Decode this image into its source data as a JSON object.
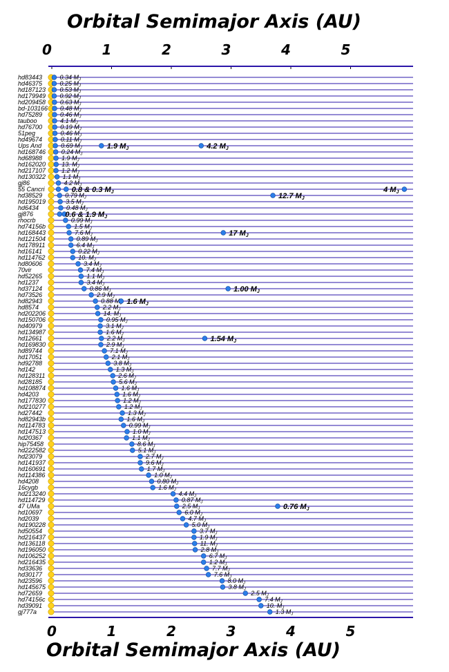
{
  "chart_data": {
    "type": "scatter",
    "top_title": "Orbital Semimajor Axis  (AU)",
    "bottom_title": "Orbital Semimajor Axis  (AU)",
    "x_ticks": [
      "0",
      "1",
      "2",
      "3",
      "4",
      "5"
    ],
    "xlim": [
      0,
      6
    ],
    "star_color": "#ffd21f",
    "planet_color": "#2b7ee8",
    "grid_color": "#2a14a8",
    "systems": [
      {
        "star": "hd83443",
        "planets": [
          {
            "a": 0.04,
            "m": "0.34 MJ",
            "big": false
          }
        ]
      },
      {
        "star": "hd46375",
        "planets": [
          {
            "a": 0.04,
            "m": "0.25 MJ",
            "big": false
          }
        ]
      },
      {
        "star": "hd187123",
        "planets": [
          {
            "a": 0.04,
            "m": "0.53 MJ",
            "big": false
          }
        ]
      },
      {
        "star": "hd179949",
        "planets": [
          {
            "a": 0.04,
            "m": "0.92 MJ",
            "big": false
          }
        ]
      },
      {
        "star": "hd209458",
        "planets": [
          {
            "a": 0.045,
            "m": "0.63 MJ",
            "big": false
          }
        ]
      },
      {
        "star": "bd-103166",
        "planets": [
          {
            "a": 0.046,
            "m": "0.48 MJ",
            "big": false
          }
        ]
      },
      {
        "star": "hd75289",
        "planets": [
          {
            "a": 0.046,
            "m": "0.46 MJ",
            "big": false
          }
        ]
      },
      {
        "star": "tauboo",
        "planets": [
          {
            "a": 0.047,
            "m": "4.1 MJ",
            "big": false
          }
        ]
      },
      {
        "star": "hd76700",
        "planets": [
          {
            "a": 0.049,
            "m": "0.19 MJ",
            "big": false
          }
        ]
      },
      {
        "star": "51peg",
        "planets": [
          {
            "a": 0.052,
            "m": "0.46 MJ",
            "big": false
          }
        ]
      },
      {
        "star": "hd49674",
        "planets": [
          {
            "a": 0.057,
            "m": "0.11 MJ",
            "big": false
          }
        ]
      },
      {
        "star": "Ups And",
        "planets": [
          {
            "a": 0.059,
            "m": "0.69 MJ",
            "big": false
          },
          {
            "a": 0.83,
            "m": "1.9 MJ",
            "big": true
          },
          {
            "a": 2.5,
            "m": "4.2 MJ",
            "big": true
          }
        ]
      },
      {
        "star": "hd168746",
        "planets": [
          {
            "a": 0.066,
            "m": "0.24 MJ",
            "big": false
          }
        ]
      },
      {
        "star": "hd68988",
        "planets": [
          {
            "a": 0.07,
            "m": "1.9 MJ",
            "big": false
          }
        ]
      },
      {
        "star": "hd162020",
        "planets": [
          {
            "a": 0.072,
            "m": "13. MJ",
            "big": false
          }
        ]
      },
      {
        "star": "hd217107",
        "planets": [
          {
            "a": 0.07,
            "m": "1.2 MJ",
            "big": false
          }
        ]
      },
      {
        "star": "hd130322",
        "planets": [
          {
            "a": 0.088,
            "m": "1.1 MJ",
            "big": false
          }
        ]
      },
      {
        "star": "gj86",
        "planets": [
          {
            "a": 0.11,
            "m": "4.2 MJ",
            "big": false
          }
        ]
      },
      {
        "star": "55 Cancri",
        "planets": [
          {
            "a": 0.11,
            "m": "",
            "big": false
          },
          {
            "a": 0.24,
            "m": "0.8 & 0.3 MJ",
            "big": true
          },
          {
            "a": 5.9,
            "m": "4 MJ",
            "big": true
          }
        ]
      },
      {
        "star": "hd38529",
        "planets": [
          {
            "a": 0.13,
            "m": "0.79 MJ",
            "big": false
          },
          {
            "a": 3.7,
            "m": "12.7 MJ",
            "big": true
          }
        ]
      },
      {
        "star": "hd195019",
        "planets": [
          {
            "a": 0.14,
            "m": "3.5 MJ",
            "big": false
          }
        ]
      },
      {
        "star": "hd6434",
        "planets": [
          {
            "a": 0.15,
            "m": "0.48 MJ",
            "big": false
          }
        ]
      },
      {
        "star": "gj876",
        "planets": [
          {
            "a": 0.21,
            "m": "",
            "big": false
          },
          {
            "a": 0.13,
            "m": "0.6 & 1.9 MJ",
            "big": true
          }
        ]
      },
      {
        "star": "rhocrb",
        "planets": [
          {
            "a": 0.23,
            "m": "0.99 MJ",
            "big": false
          }
        ]
      },
      {
        "star": "hd74156b",
        "planets": [
          {
            "a": 0.28,
            "m": "1.5 MJ",
            "big": false
          }
        ]
      },
      {
        "star": "hd168443",
        "planets": [
          {
            "a": 0.29,
            "m": "7.6 MJ",
            "big": false
          },
          {
            "a": 2.87,
            "m": "17 MJ",
            "big": true
          }
        ]
      },
      {
        "star": "hd121504",
        "planets": [
          {
            "a": 0.32,
            "m": "0.89 MJ",
            "big": false
          }
        ]
      },
      {
        "star": "hd178911",
        "planets": [
          {
            "a": 0.32,
            "m": "6.4 MJ",
            "big": false
          }
        ]
      },
      {
        "star": "hd16141",
        "planets": [
          {
            "a": 0.35,
            "m": "0.22 MJ",
            "big": false
          }
        ]
      },
      {
        "star": "hd114762",
        "planets": [
          {
            "a": 0.35,
            "m": "10. MJ",
            "big": false
          }
        ]
      },
      {
        "star": "hd80606",
        "planets": [
          {
            "a": 0.44,
            "m": "3.4 MJ",
            "big": false
          }
        ]
      },
      {
        "star": "70vir",
        "planets": [
          {
            "a": 0.48,
            "m": "7.4 MJ",
            "big": false
          }
        ]
      },
      {
        "star": "hd52265",
        "planets": [
          {
            "a": 0.49,
            "m": "1.1 MJ",
            "big": false
          }
        ]
      },
      {
        "star": "hd1237",
        "planets": [
          {
            "a": 0.49,
            "m": "3.4 MJ",
            "big": false
          }
        ]
      },
      {
        "star": "hd37124",
        "planets": [
          {
            "a": 0.54,
            "m": "0.86 MJ",
            "big": false
          },
          {
            "a": 2.95,
            "m": "1.00 MJ",
            "big": true
          }
        ]
      },
      {
        "star": "hd73526",
        "planets": [
          {
            "a": 0.66,
            "m": "2.9 MJ",
            "big": false
          }
        ]
      },
      {
        "star": "hd82943",
        "planets": [
          {
            "a": 0.73,
            "m": "0.88 MJ",
            "big": false
          },
          {
            "a": 1.16,
            "m": "1.6 MJ",
            "big": true
          }
        ]
      },
      {
        "star": "hd8574",
        "planets": [
          {
            "a": 0.76,
            "m": "2.2 MJ",
            "big": false
          }
        ]
      },
      {
        "star": "hd202206",
        "planets": [
          {
            "a": 0.77,
            "m": "14. MJ",
            "big": false
          }
        ]
      },
      {
        "star": "hd150706",
        "planets": [
          {
            "a": 0.82,
            "m": "0.95 MJ",
            "big": false
          }
        ]
      },
      {
        "star": "hd40979",
        "planets": [
          {
            "a": 0.81,
            "m": "3.1 MJ",
            "big": false
          }
        ]
      },
      {
        "star": "hd134987",
        "planets": [
          {
            "a": 0.81,
            "m": "1.6 MJ",
            "big": false
          }
        ]
      },
      {
        "star": "hd12661",
        "planets": [
          {
            "a": 0.83,
            "m": "2.2 MJ",
            "big": false
          },
          {
            "a": 2.56,
            "m": "1.54 MJ",
            "big": true
          }
        ]
      },
      {
        "star": "hd169830",
        "planets": [
          {
            "a": 0.82,
            "m": "2.9 MJ",
            "big": false
          }
        ]
      },
      {
        "star": "hd89744",
        "planets": [
          {
            "a": 0.88,
            "m": "7.1 MJ",
            "big": false
          }
        ]
      },
      {
        "star": "hd17051",
        "planets": [
          {
            "a": 0.91,
            "m": "2.1 MJ",
            "big": false
          }
        ]
      },
      {
        "star": "hd92788",
        "planets": [
          {
            "a": 0.94,
            "m": "3.8 MJ",
            "big": false
          }
        ]
      },
      {
        "star": "hd142",
        "planets": [
          {
            "a": 0.98,
            "m": "1.3 MJ",
            "big": false
          }
        ]
      },
      {
        "star": "hd128311",
        "planets": [
          {
            "a": 1.02,
            "m": "2.6 MJ",
            "big": false
          }
        ]
      },
      {
        "star": "hd28185",
        "planets": [
          {
            "a": 1.03,
            "m": "5.6 MJ",
            "big": false
          }
        ]
      },
      {
        "star": "hd108874",
        "planets": [
          {
            "a": 1.07,
            "m": "1.6 MJ",
            "big": false
          }
        ]
      },
      {
        "star": "hd4203",
        "planets": [
          {
            "a": 1.09,
            "m": "1.6 MJ",
            "big": false
          }
        ]
      },
      {
        "star": "hd177830",
        "planets": [
          {
            "a": 1.1,
            "m": "1.2 MJ",
            "big": false
          }
        ]
      },
      {
        "star": "hd210277",
        "planets": [
          {
            "a": 1.12,
            "m": "1.2 MJ",
            "big": false
          }
        ]
      },
      {
        "star": "hd27442",
        "planets": [
          {
            "a": 1.18,
            "m": "1.3 MJ",
            "big": false
          }
        ]
      },
      {
        "star": "hd82943b",
        "planets": [
          {
            "a": 1.16,
            "m": "1.6 MJ",
            "big": false
          }
        ]
      },
      {
        "star": "hd114783",
        "planets": [
          {
            "a": 1.2,
            "m": "0.99 MJ",
            "big": false
          }
        ]
      },
      {
        "star": "hd147513",
        "planets": [
          {
            "a": 1.26,
            "m": "1.0 MJ",
            "big": false
          }
        ]
      },
      {
        "star": "hd20367",
        "planets": [
          {
            "a": 1.25,
            "m": "1.1 MJ",
            "big": false
          }
        ]
      },
      {
        "star": "hip75458",
        "planets": [
          {
            "a": 1.34,
            "m": "8.6 MJ",
            "big": false
          }
        ]
      },
      {
        "star": "hd222582",
        "planets": [
          {
            "a": 1.35,
            "m": "5.1 MJ",
            "big": false
          }
        ]
      },
      {
        "star": "hd23079",
        "planets": [
          {
            "a": 1.48,
            "m": "2.7 MJ",
            "big": false
          }
        ]
      },
      {
        "star": "hd141937",
        "planets": [
          {
            "a": 1.48,
            "m": "9.6 MJ",
            "big": false
          }
        ]
      },
      {
        "star": "hd160691",
        "planets": [
          {
            "a": 1.5,
            "m": "1.7 MJ",
            "big": false
          }
        ]
      },
      {
        "star": "hd114386",
        "planets": [
          {
            "a": 1.62,
            "m": "1.0 MJ",
            "big": false
          }
        ]
      },
      {
        "star": "hd4208",
        "planets": [
          {
            "a": 1.67,
            "m": "0.80 MJ",
            "big": false
          }
        ]
      },
      {
        "star": "16cygb",
        "planets": [
          {
            "a": 1.69,
            "m": "1.6 MJ",
            "big": false
          }
        ]
      },
      {
        "star": "hd213240",
        "planets": [
          {
            "a": 2.03,
            "m": "4.4 MJ",
            "big": false
          }
        ]
      },
      {
        "star": "hd114729",
        "planets": [
          {
            "a": 2.08,
            "m": "0.87 MJ",
            "big": false
          }
        ]
      },
      {
        "star": "47 UMa",
        "planets": [
          {
            "a": 2.09,
            "m": "2.5 MJ",
            "big": false
          },
          {
            "a": 3.78,
            "m": "0.76 MJ",
            "big": true
          }
        ]
      },
      {
        "star": "hd10697",
        "planets": [
          {
            "a": 2.13,
            "m": "6.0 MJ",
            "big": false
          }
        ]
      },
      {
        "star": "hd2039",
        "planets": [
          {
            "a": 2.19,
            "m": "4.7 MJ",
            "big": false
          }
        ]
      },
      {
        "star": "hd190228",
        "planets": [
          {
            "a": 2.25,
            "m": "5.0 MJ",
            "big": false
          }
        ]
      },
      {
        "star": "hd50554",
        "planets": [
          {
            "a": 2.38,
            "m": "3.7 MJ",
            "big": false
          }
        ]
      },
      {
        "star": "hd216437",
        "planets": [
          {
            "a": 2.38,
            "m": "1.9 MJ",
            "big": false
          }
        ]
      },
      {
        "star": "hd136118",
        "planets": [
          {
            "a": 2.39,
            "m": "11. MJ",
            "big": false
          }
        ]
      },
      {
        "star": "hd196050",
        "planets": [
          {
            "a": 2.4,
            "m": "2.8 MJ",
            "big": false
          }
        ]
      },
      {
        "star": "hd106252",
        "planets": [
          {
            "a": 2.54,
            "m": "6.7 MJ",
            "big": false
          }
        ]
      },
      {
        "star": "hd216435",
        "planets": [
          {
            "a": 2.54,
            "m": "1.2 MJ",
            "big": false
          }
        ]
      },
      {
        "star": "hd33636",
        "planets": [
          {
            "a": 2.59,
            "m": "7.7 MJ",
            "big": false
          }
        ]
      },
      {
        "star": "hd30177",
        "planets": [
          {
            "a": 2.62,
            "m": "7.6 MJ",
            "big": false
          }
        ]
      },
      {
        "star": "hd23596",
        "planets": [
          {
            "a": 2.85,
            "m": "8.0 MJ",
            "big": false
          }
        ]
      },
      {
        "star": "hd145675",
        "planets": [
          {
            "a": 2.86,
            "m": "3.8 MJ",
            "big": false
          }
        ]
      },
      {
        "star": "hd72659",
        "planets": [
          {
            "a": 3.24,
            "m": "2.5 MJ",
            "big": false
          }
        ]
      },
      {
        "star": "hd74156c",
        "planets": [
          {
            "a": 3.47,
            "m": "7.4 MJ",
            "big": false
          }
        ]
      },
      {
        "star": "hd39091",
        "planets": [
          {
            "a": 3.5,
            "m": "10. MJ",
            "big": false
          }
        ]
      },
      {
        "star": "gj777a",
        "planets": [
          {
            "a": 3.65,
            "m": "1.3 MJ",
            "big": false
          }
        ]
      }
    ]
  }
}
